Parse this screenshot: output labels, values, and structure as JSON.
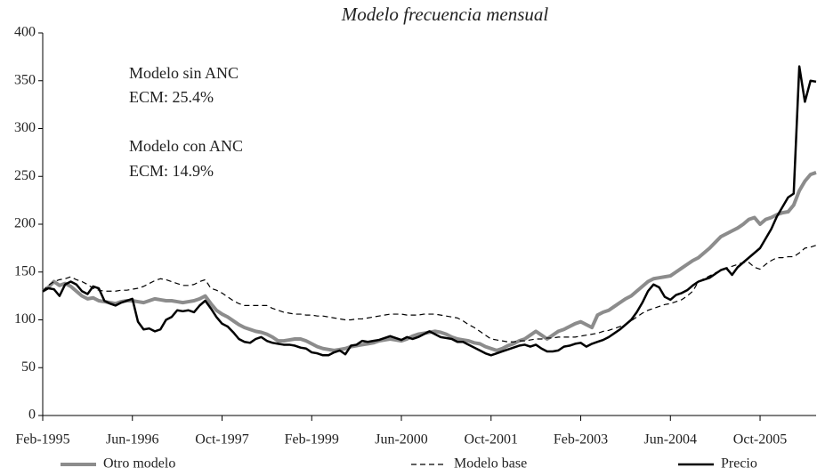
{
  "chart_data": {
    "type": "line",
    "title": "Modelo frecuencia mensual",
    "categories": [
      "Feb-1995",
      null,
      null,
      null,
      null,
      null,
      null,
      null,
      null,
      null,
      null,
      null,
      null,
      null,
      null,
      null,
      "Jun-1996",
      null,
      null,
      null,
      null,
      null,
      null,
      null,
      null,
      null,
      null,
      null,
      null,
      null,
      null,
      null,
      "Oct-1997",
      null,
      null,
      null,
      null,
      null,
      null,
      null,
      null,
      null,
      null,
      null,
      null,
      null,
      null,
      null,
      "Feb-1999",
      null,
      null,
      null,
      null,
      null,
      null,
      null,
      null,
      null,
      null,
      null,
      null,
      null,
      null,
      null,
      "Jun-2000",
      null,
      null,
      null,
      null,
      null,
      null,
      null,
      null,
      null,
      null,
      null,
      null,
      null,
      null,
      null,
      "Oct-2001",
      null,
      null,
      null,
      null,
      null,
      null,
      null,
      null,
      null,
      null,
      null,
      null,
      null,
      null,
      null,
      "Feb-2003",
      null,
      null,
      null,
      null,
      null,
      null,
      null,
      null,
      null,
      null,
      null,
      null,
      null,
      null,
      null,
      "Jun-2004",
      null,
      null,
      null,
      null,
      null,
      null,
      null,
      null,
      null,
      null,
      null,
      null,
      null,
      null,
      null,
      "Oct-2005",
      null,
      null,
      null,
      null,
      null,
      null,
      null,
      null,
      null,
      null
    ],
    "series": [
      {
        "name": "Otro modelo",
        "color": "#8c8c8c",
        "style": "solid",
        "width": 4,
        "values": [
          130,
          134,
          140,
          136,
          138,
          135,
          130,
          125,
          122,
          123,
          120,
          119,
          118,
          117,
          119,
          120,
          120,
          119,
          118,
          120,
          122,
          121,
          120,
          120,
          119,
          118,
          119,
          120,
          122,
          125,
          117,
          110,
          106,
          103,
          99,
          95,
          92,
          90,
          88,
          87,
          85,
          82,
          78,
          78,
          79,
          80,
          80,
          78,
          75,
          72,
          70,
          69,
          68,
          69,
          70,
          72,
          73,
          74,
          75,
          76,
          78,
          79,
          80,
          79,
          78,
          80,
          83,
          85,
          86,
          87,
          88,
          87,
          85,
          82,
          80,
          79,
          78,
          76,
          75,
          72,
          70,
          68,
          70,
          73,
          75,
          78,
          80,
          84,
          88,
          84,
          80,
          84,
          88,
          90,
          93,
          96,
          98,
          95,
          92,
          105,
          108,
          110,
          114,
          118,
          122,
          125,
          130,
          135,
          140,
          143,
          144,
          145,
          146,
          150,
          154,
          158,
          162,
          165,
          170,
          175,
          181,
          187,
          190,
          193,
          196,
          200,
          205,
          207,
          200,
          205,
          207,
          210,
          212,
          213,
          220,
          235,
          245,
          252,
          254
        ]
      },
      {
        "name": "Modelo base",
        "color": "#000000",
        "style": "dashed",
        "width": 1.2,
        "values": [
          130,
          136,
          140,
          142,
          143,
          145,
          142,
          140,
          137,
          133,
          131,
          130,
          130,
          130,
          131,
          131,
          132,
          133,
          135,
          138,
          141,
          143,
          142,
          140,
          138,
          136,
          136,
          137,
          140,
          142,
          133,
          131,
          128,
          124,
          120,
          117,
          115,
          115,
          115,
          115,
          115,
          112,
          110,
          108,
          107,
          106,
          106,
          105,
          105,
          104,
          104,
          103,
          102,
          101,
          100,
          100,
          101,
          101,
          102,
          103,
          104,
          105,
          106,
          106,
          106,
          105,
          105,
          105,
          106,
          106,
          106,
          105,
          104,
          103,
          102,
          99,
          95,
          92,
          88,
          84,
          80,
          79,
          78,
          77,
          77,
          78,
          78,
          79,
          80,
          80,
          81,
          81,
          82,
          82,
          82,
          82,
          83,
          84,
          85,
          86,
          88,
          89,
          91,
          93,
          95,
          99,
          103,
          107,
          110,
          112,
          114,
          116,
          117,
          119,
          121,
          125,
          130,
          140,
          143,
          146,
          149,
          152,
          154,
          156,
          158,
          160,
          160,
          155,
          153,
          158,
          162,
          165,
          165,
          166,
          166,
          170,
          175,
          176,
          178
        ]
      },
      {
        "name": "Precio",
        "color": "#000000",
        "style": "solid",
        "width": 2.5,
        "values": [
          130,
          133,
          132,
          125,
          137,
          140,
          137,
          130,
          127,
          135,
          133,
          120,
          117,
          115,
          118,
          120,
          122,
          98,
          90,
          91,
          88,
          90,
          100,
          103,
          110,
          109,
          110,
          108,
          115,
          120,
          112,
          103,
          96,
          93,
          87,
          80,
          77,
          76,
          80,
          82,
          78,
          76,
          75,
          74,
          74,
          73,
          71,
          70,
          66,
          65,
          63,
          63,
          66,
          68,
          64,
          73,
          74,
          78,
          77,
          78,
          79,
          81,
          83,
          81,
          79,
          82,
          80,
          82,
          85,
          88,
          85,
          82,
          81,
          80,
          77,
          77,
          74,
          71,
          68,
          65,
          63,
          65,
          67,
          69,
          71,
          73,
          74,
          72,
          74,
          70,
          67,
          67,
          68,
          72,
          73,
          75,
          76,
          72,
          75,
          77,
          79,
          82,
          86,
          90,
          95,
          100,
          108,
          118,
          130,
          137,
          134,
          124,
          121,
          126,
          128,
          131,
          136,
          140,
          142,
          144,
          148,
          152,
          154,
          147,
          155,
          160,
          165,
          170,
          175,
          185,
          195,
          208,
          218,
          228,
          232,
          365,
          328,
          350,
          349
        ]
      }
    ],
    "annotations": [
      "Modelo sin ANC",
      "ECM: 25.4%",
      "Modelo con ANC",
      "ECM: 14.9%"
    ],
    "ylim": [
      0,
      400
    ],
    "yticks": [
      0,
      50,
      100,
      150,
      200,
      250,
      300,
      350,
      400
    ],
    "grid": false,
    "legend": "bottom"
  }
}
